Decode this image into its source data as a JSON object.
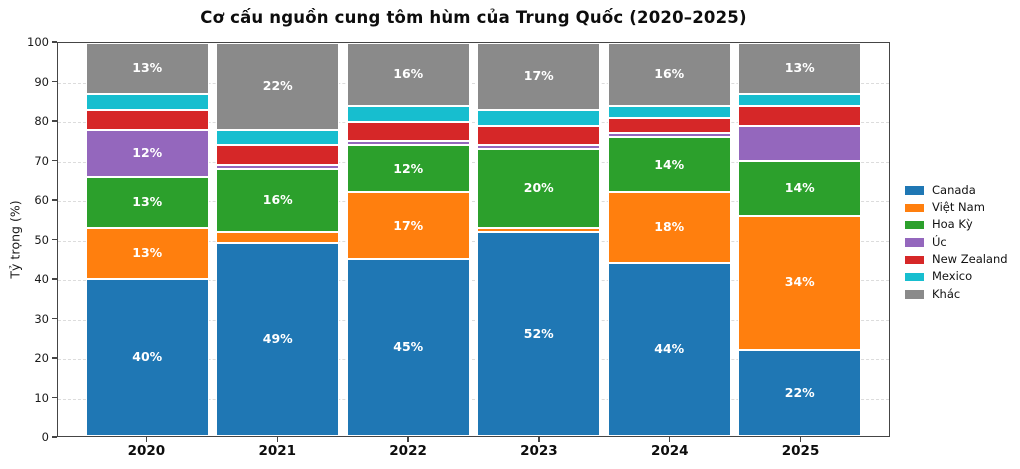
{
  "chart_data": {
    "type": "bar",
    "stacked": true,
    "title": "Cơ cấu nguồn cung tôm hùm của Trung Quốc (2020–2025)",
    "xlabel": "",
    "ylabel": "Tỷ trọng (%)",
    "categories": [
      "2020",
      "2021",
      "2022",
      "2023",
      "2024",
      "2025"
    ],
    "series": [
      {
        "name": "Canada",
        "color": "#1f77b4",
        "values": [
          40,
          49,
          45,
          52,
          44,
          22
        ]
      },
      {
        "name": "Việt Nam",
        "color": "#ff7f0e",
        "values": [
          13,
          3,
          17,
          1,
          18,
          34
        ]
      },
      {
        "name": "Hoa Kỳ",
        "color": "#2ca02c",
        "values": [
          13,
          16,
          12,
          20,
          14,
          14
        ]
      },
      {
        "name": "Úc",
        "color": "#9467bd",
        "values": [
          12,
          1,
          1,
          1,
          1,
          9
        ]
      },
      {
        "name": "New Zealand",
        "color": "#d62728",
        "values": [
          5,
          5,
          5,
          5,
          4,
          5
        ]
      },
      {
        "name": "Mexico",
        "color": "#17becf",
        "values": [
          4,
          4,
          4,
          4,
          3,
          3
        ]
      },
      {
        "name": "Khác",
        "color": "#8a8a8a",
        "values": [
          13,
          22,
          16,
          17,
          16,
          13
        ]
      }
    ],
    "ylim": [
      0,
      100
    ],
    "yticks": [
      0,
      10,
      20,
      30,
      40,
      50,
      60,
      70,
      80,
      90,
      100
    ],
    "grid": "horizontal-dashed",
    "legend_position": "right-outside",
    "label_threshold": 12,
    "label_suffix": "%"
  }
}
